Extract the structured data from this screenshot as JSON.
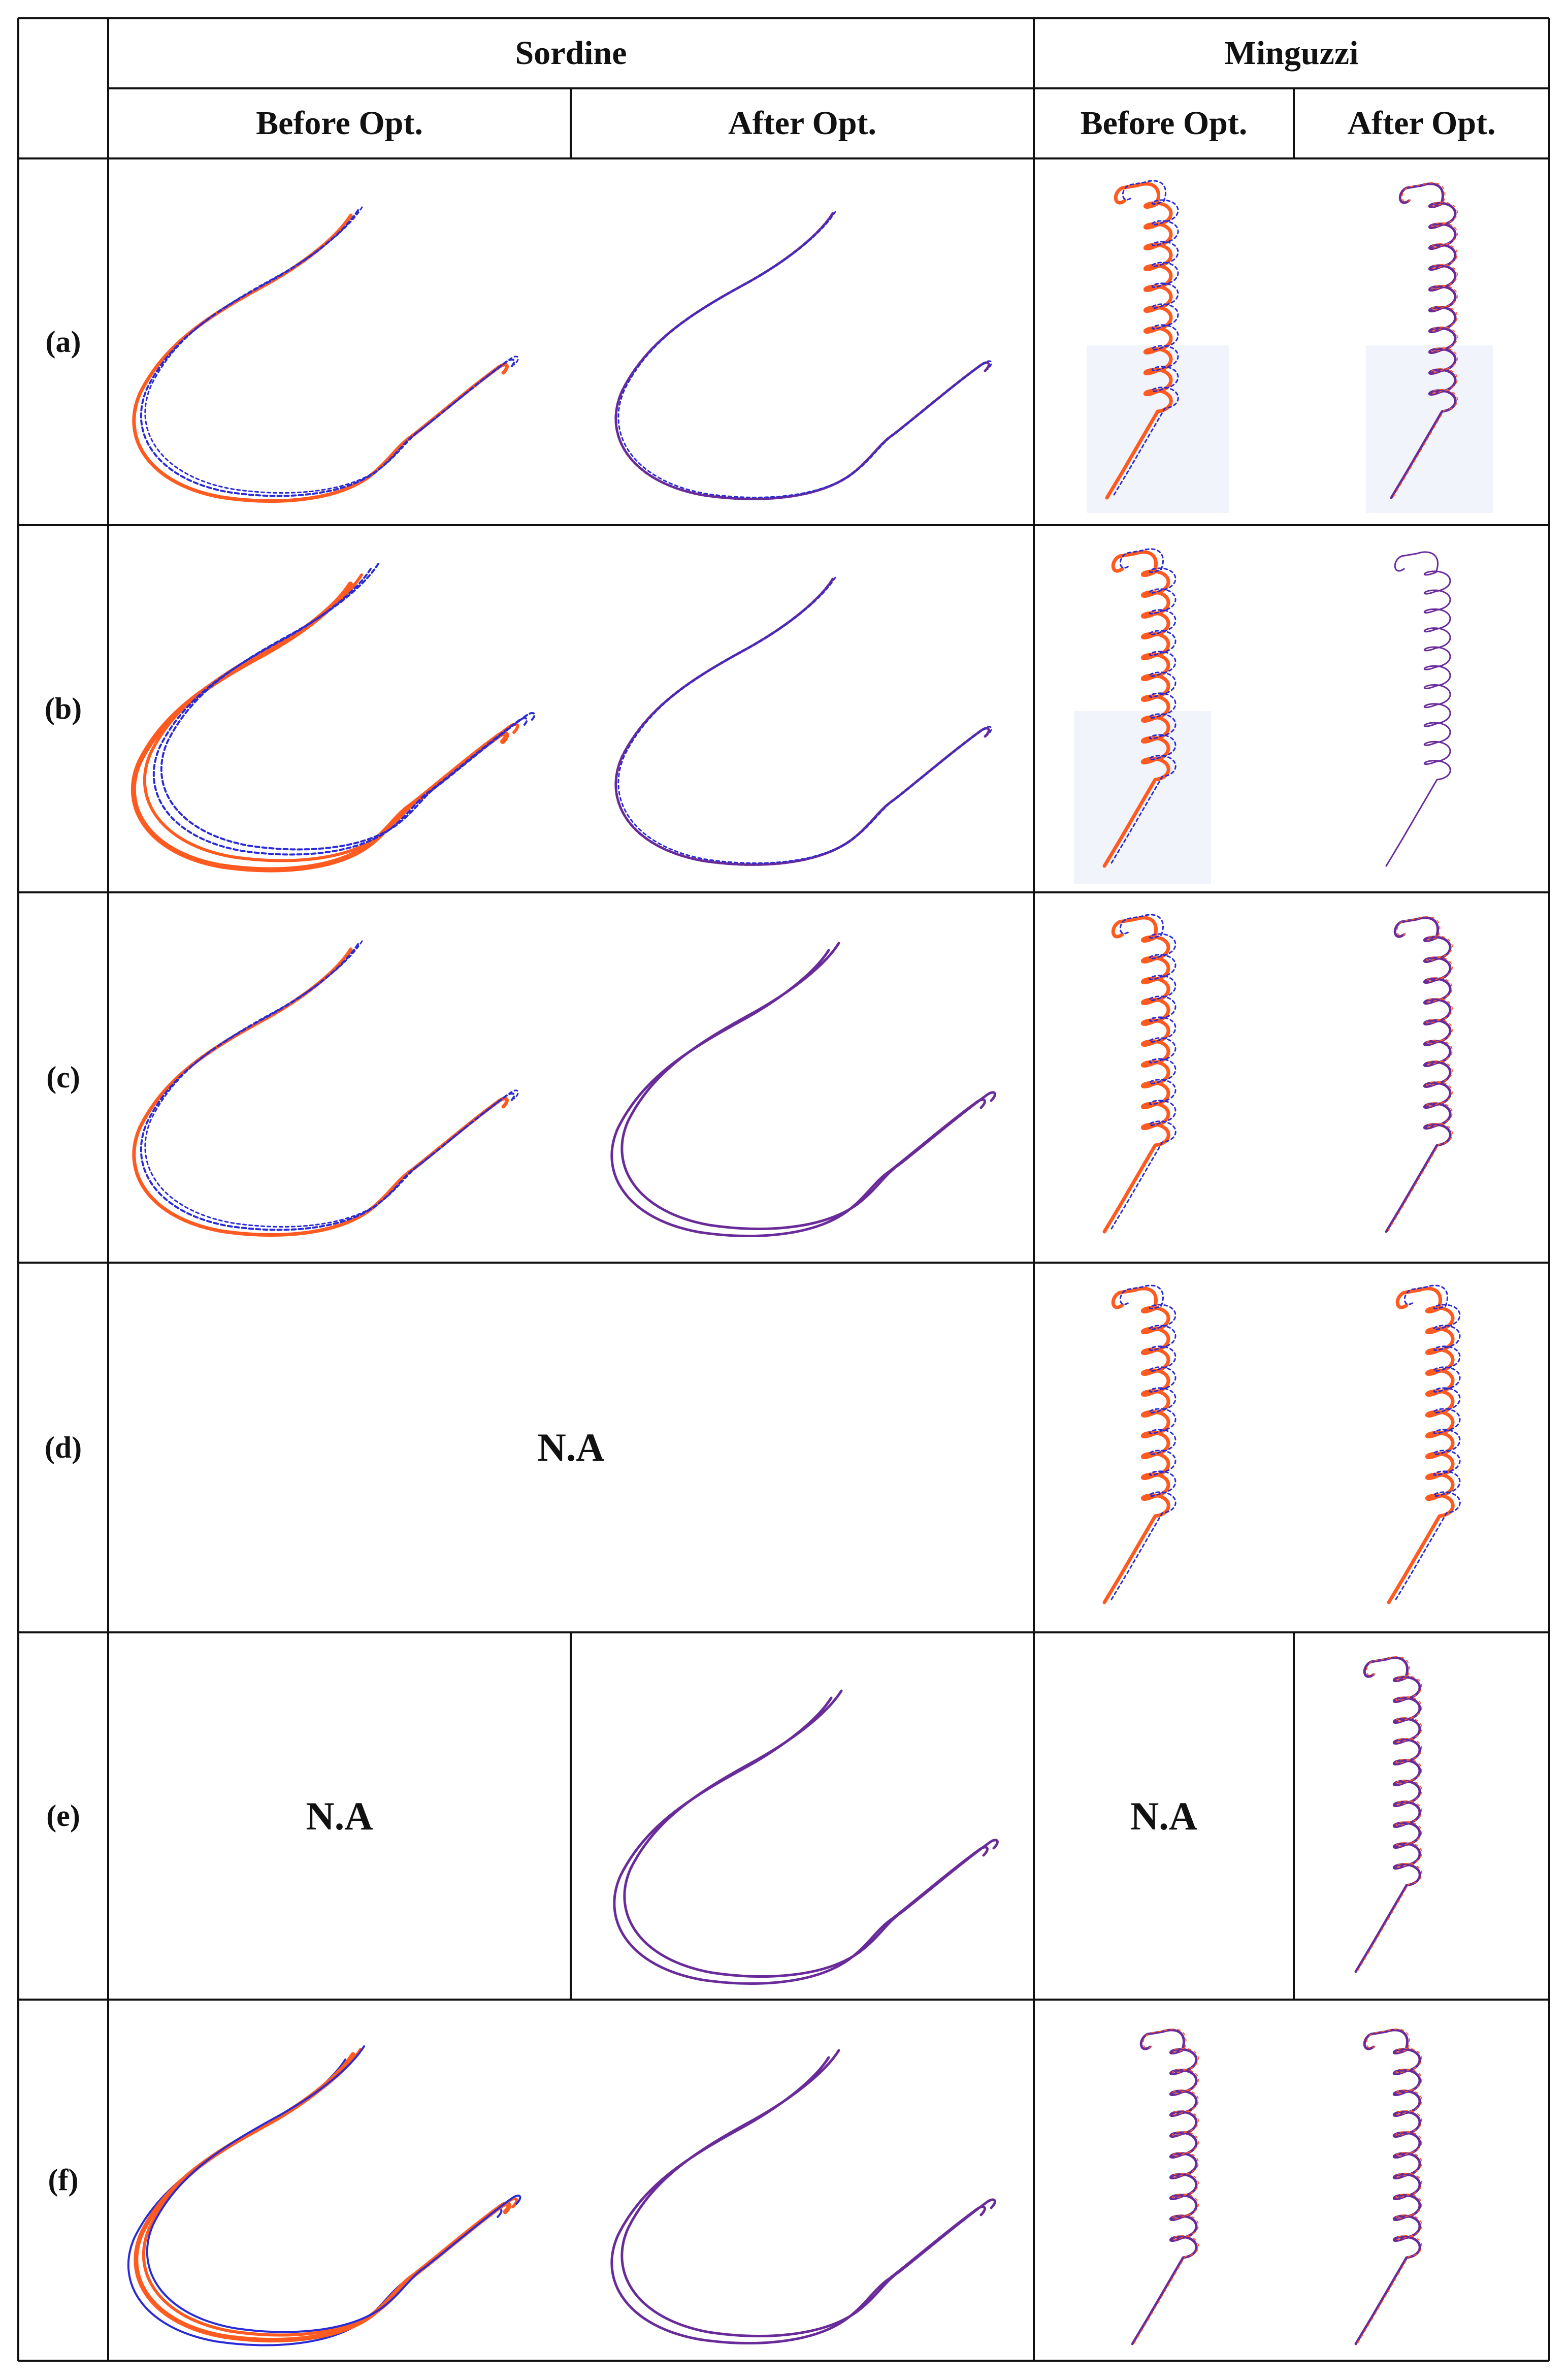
{
  "header": {
    "group_sordine": "Sordine",
    "group_minguzzi": "Minguzzi",
    "sordine_before": "Before Opt.",
    "sordine_after": "After Opt.",
    "minguzzi_before": "Before Opt.",
    "minguzzi_after": "After Opt."
  },
  "legend_colors": {
    "trajectory_a": "#ff5a1f",
    "trajectory_b": "#2b2bd6",
    "overlap": "#6a2b9a"
  },
  "rows": [
    {
      "label": "(a)",
      "na": ""
    },
    {
      "label": "(b)",
      "na": ""
    },
    {
      "label": "(c)",
      "na": ""
    },
    {
      "label": "(d)",
      "na": "N.A"
    },
    {
      "label": "(e)",
      "na_sordine_before": "N.A",
      "na_minguzzi_before": "N.A"
    },
    {
      "label": "(f)",
      "na": ""
    }
  ]
}
